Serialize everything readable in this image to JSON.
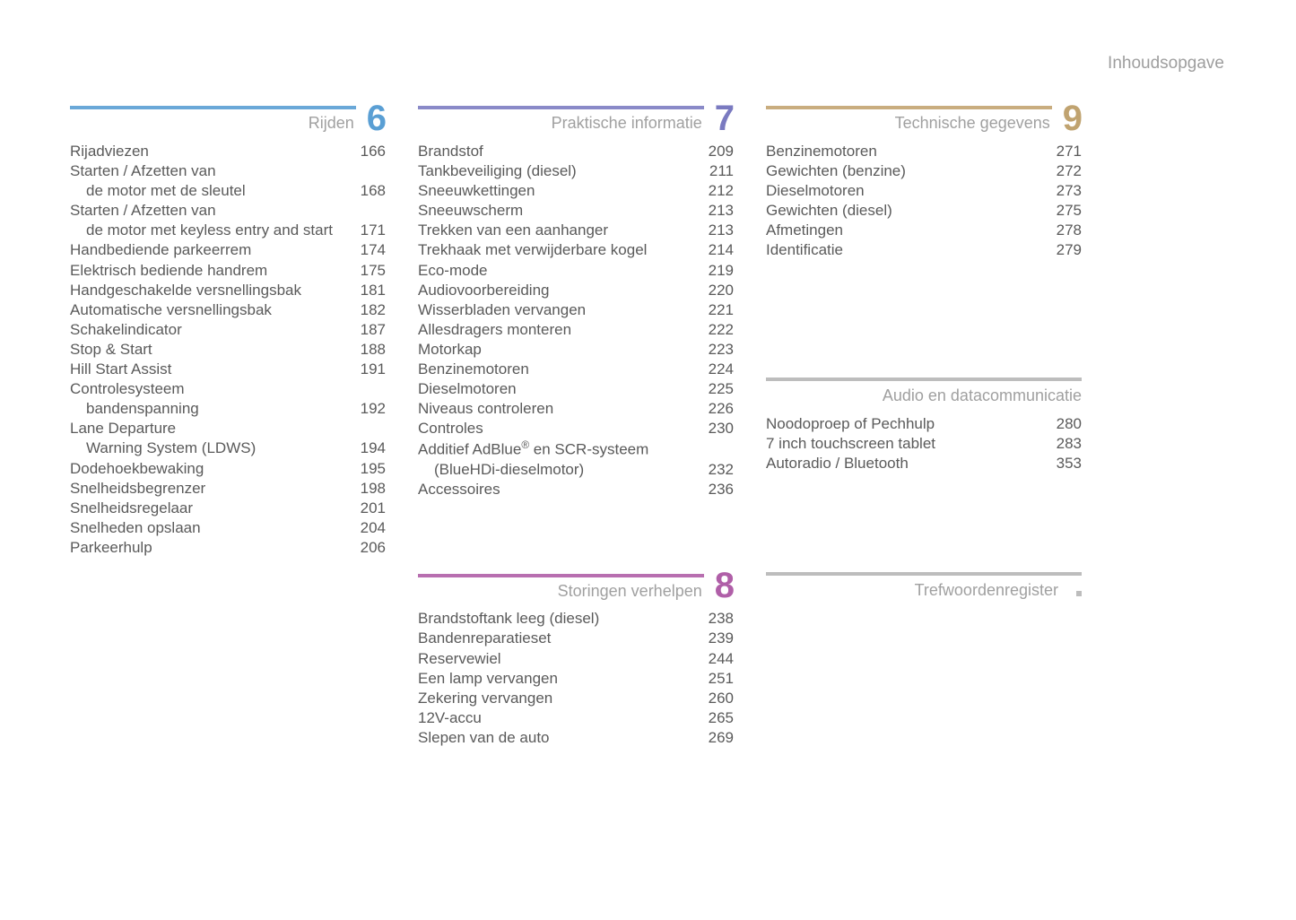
{
  "page_title": "Inhoudsopgave",
  "colors": {
    "sec6_bar": "#6aa8d8",
    "sec6_num": "#5a9fd4",
    "sec7_bar": "#8a8ac8",
    "sec7_num": "#7a7ac0",
    "sec8_bar": "#b86fb0",
    "sec8_num": "#b05fa8",
    "sec9_bar": "#c9ad7f",
    "sec9_num": "#c0a370",
    "audio_bar": "#bdbdbd",
    "tref_bar": "#bdbdbd"
  },
  "sec6": {
    "num": "6",
    "title": "Rijden",
    "items": [
      {
        "label": "Rijadviezen",
        "page": "166"
      },
      {
        "label": "Starten / Afzetten van",
        "sub": "de motor met de sleutel",
        "page": "168"
      },
      {
        "label": "Starten / Afzetten van",
        "sub": "de motor met keyless entry and start",
        "page": "171"
      },
      {
        "label": "Handbediende parkeerrem",
        "page": "174"
      },
      {
        "label": "Elektrisch bediende handrem",
        "page": "175"
      },
      {
        "label": "Handgeschakelde versnellingsbak",
        "page": "181"
      },
      {
        "label": "Automatische versnellingsbak",
        "page": "182"
      },
      {
        "label": "Schakelindicator",
        "page": "187"
      },
      {
        "label": "Stop & Start",
        "page": "188"
      },
      {
        "label": "Hill Start Assist",
        "page": "191"
      },
      {
        "label": "Controlesysteem",
        "sub": "bandenspanning",
        "page": "192"
      },
      {
        "label": "Lane Departure",
        "sub": "Warning System (LDWS)",
        "page": "194"
      },
      {
        "label": "Dodehoekbewaking",
        "page": "195"
      },
      {
        "label": "Snelheidsbegrenzer",
        "page": "198"
      },
      {
        "label": "Snelheidsregelaar",
        "page": "201"
      },
      {
        "label": "Snelheden opslaan",
        "page": "204"
      },
      {
        "label": "Parkeerhulp",
        "page": "206"
      }
    ]
  },
  "sec7": {
    "num": "7",
    "title": "Praktische informatie",
    "items": [
      {
        "label": "Brandstof",
        "page": "209"
      },
      {
        "label": "Tankbeveiliging (diesel)",
        "page": "211"
      },
      {
        "label": "Sneeuwkettingen",
        "page": "212"
      },
      {
        "label": "Sneeuwscherm",
        "page": "213"
      },
      {
        "label": "Trekken van een aanhanger",
        "page": "213"
      },
      {
        "label": "Trekhaak met verwijderbare kogel",
        "page": "214"
      },
      {
        "label": "Eco-mode",
        "page": "219"
      },
      {
        "label": "Audiovoorbereiding",
        "page": "220"
      },
      {
        "label": "Wisserbladen vervangen",
        "page": "221"
      },
      {
        "label": "Allesdragers monteren",
        "page": "222"
      },
      {
        "label": "Motorkap",
        "page": "223"
      },
      {
        "label": "Benzinemotoren",
        "page": "224"
      },
      {
        "label": "Dieselmotoren",
        "page": "225"
      },
      {
        "label": "Niveaus controleren",
        "page": "226"
      },
      {
        "label": "Controles",
        "page": "230"
      },
      {
        "label_html": "Additief AdBlue<sup>®</sup> en SCR-systeem",
        "sub": "(BlueHDi-dieselmotor)",
        "page": "232"
      },
      {
        "label": "Accessoires",
        "page": "236"
      }
    ]
  },
  "sec8": {
    "num": "8",
    "title": "Storingen verhelpen",
    "items": [
      {
        "label": "Brandstoftank leeg (diesel)",
        "page": "238"
      },
      {
        "label": "Bandenreparatieset",
        "page": "239"
      },
      {
        "label": "Reservewiel",
        "page": "244"
      },
      {
        "label": "Een lamp vervangen",
        "page": "251"
      },
      {
        "label": "Zekering vervangen",
        "page": "260"
      },
      {
        "label": "12V-accu",
        "page": "265"
      },
      {
        "label": "Slepen van de auto",
        "page": "269"
      }
    ]
  },
  "sec9": {
    "num": "9",
    "title": "Technische gegevens",
    "items": [
      {
        "label": "Benzinemotoren",
        "page": "271"
      },
      {
        "label": "Gewichten (benzine)",
        "page": "272"
      },
      {
        "label": "Dieselmotoren",
        "page": "273"
      },
      {
        "label": "Gewichten (diesel)",
        "page": "275"
      },
      {
        "label": "Afmetingen",
        "page": "278"
      },
      {
        "label": "Identificatie",
        "page": "279"
      }
    ]
  },
  "sec_audio": {
    "title": "Audio en datacommunicatie",
    "items": [
      {
        "label": "Noodoproep of Pechhulp",
        "page": "280"
      },
      {
        "label": "7 inch touchscreen tablet",
        "page": "283"
      },
      {
        "label": "Autoradio / Bluetooth",
        "page": "353"
      }
    ]
  },
  "sec_tref": {
    "title": "Trefwoordenregister"
  }
}
